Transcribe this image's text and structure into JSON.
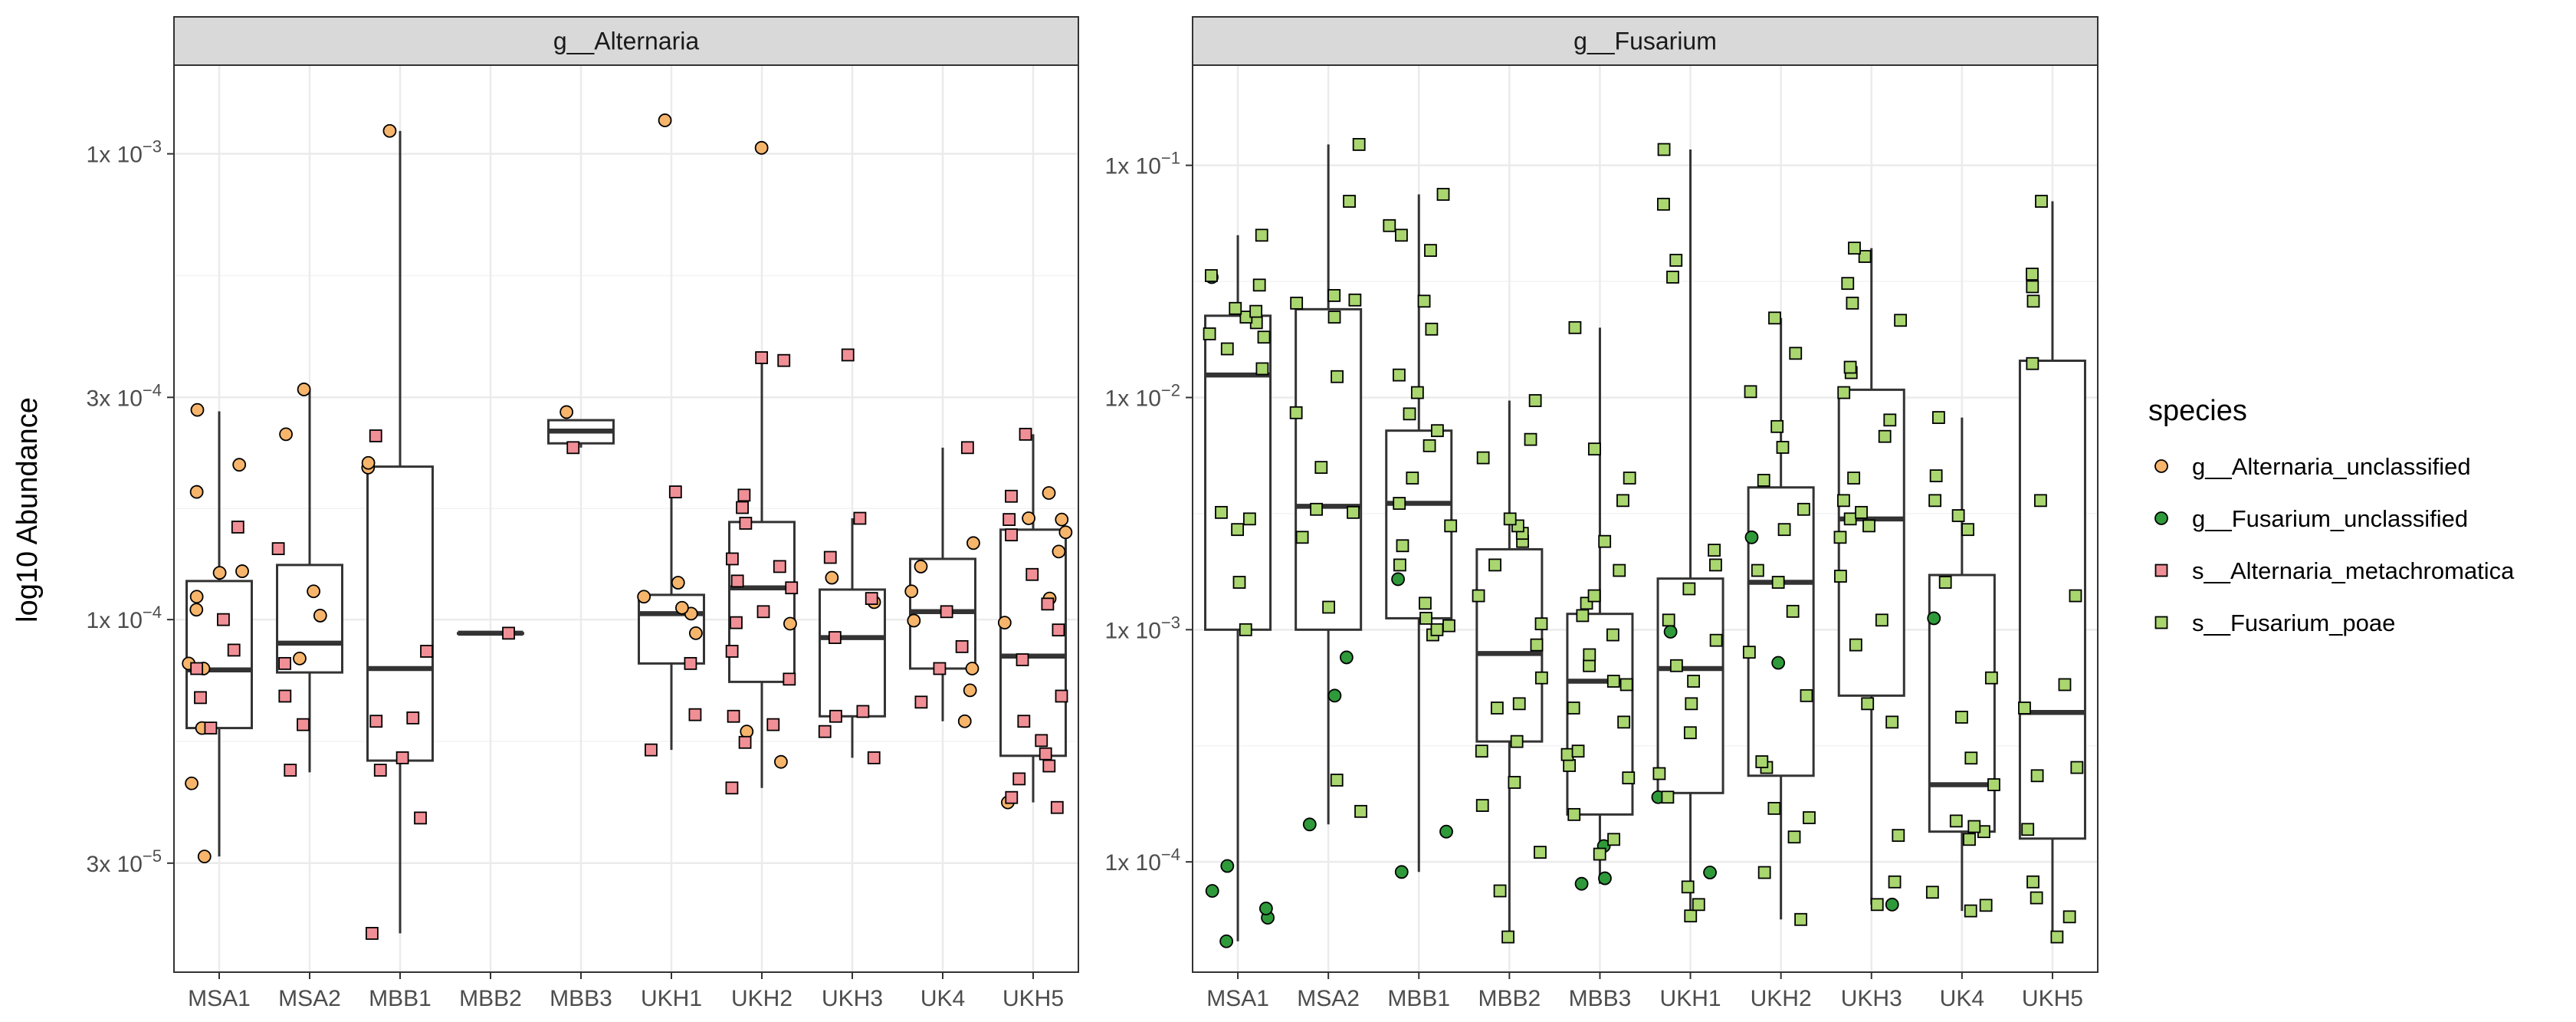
{
  "chart_data": [
    {
      "type": "box",
      "panel": "g__Alternaria",
      "ylabel": "log10 Abundance",
      "yscale": "log10",
      "ylim": [
        1.75e-05,
        0.00155
      ],
      "y_ticks": [
        {
          "value": 3e-05,
          "mantissa": "3",
          "exponent": "−5"
        },
        {
          "value": 0.0001,
          "mantissa": "1",
          "exponent": "−4"
        },
        {
          "value": 0.0003,
          "mantissa": "3",
          "exponent": "−4"
        },
        {
          "value": 0.001,
          "mantissa": "1",
          "exponent": "−3"
        }
      ],
      "categories": [
        "MSA1",
        "MSA2",
        "MBB1",
        "MBB2",
        "MBB3",
        "UKH1",
        "UKH2",
        "UKH3",
        "UK4",
        "UKH5"
      ],
      "boxes": [
        {
          "category": "MSA1",
          "min": 3.1e-05,
          "q1": 5.85e-05,
          "median": 7.8e-05,
          "q3": 0.000121,
          "max": 0.00028
        },
        {
          "category": "MSA2",
          "min": 4.7e-05,
          "q1": 7.7e-05,
          "median": 8.9e-05,
          "q3": 0.000131,
          "max": 0.00031
        },
        {
          "category": "MBB1",
          "min": 2.12e-05,
          "q1": 4.98e-05,
          "median": 7.85e-05,
          "q3": 0.000213,
          "max": 0.00112
        },
        {
          "category": "MBB2",
          "min": 9.35e-05,
          "q1": 9.35e-05,
          "median": 9.35e-05,
          "q3": 9.35e-05,
          "max": 9.35e-05
        },
        {
          "category": "MBB3",
          "min": 0.000234,
          "q1": 0.000239,
          "median": 0.000254,
          "q3": 0.000268,
          "max": 0.000268
        },
        {
          "category": "UKH1",
          "min": 5.25e-05,
          "q1": 8.05e-05,
          "median": 0.000103,
          "q3": 0.000113,
          "max": 0.000188
        },
        {
          "category": "UKH2",
          "min": 4.35e-05,
          "q1": 7.35e-05,
          "median": 0.000117,
          "q3": 0.000162,
          "max": 0.00036
        },
        {
          "category": "UKH3",
          "min": 5.05e-05,
          "q1": 6.2e-05,
          "median": 9.15e-05,
          "q3": 0.000116,
          "max": 0.000165
        },
        {
          "category": "UK4",
          "min": 6.05e-05,
          "q1": 7.85e-05,
          "median": 0.000104,
          "q3": 0.000135,
          "max": 0.000234
        },
        {
          "category": "UKH5",
          "min": 4.05e-05,
          "q1": 5.1e-05,
          "median": 8.35e-05,
          "q3": 0.000156,
          "max": 0.00025
        }
      ],
      "points": [
        {
          "category": "MSA1",
          "species": "g__Alternaria_unclassified",
          "values": [
            3.1e-05,
            4.45e-05,
            5.85e-05,
            7.85e-05,
            8.05e-05,
            0.000105,
            0.000112,
            0.000126,
            0.000127,
            0.000188,
            0.000215,
            0.000282
          ]
        },
        {
          "category": "MSA1",
          "species": "s__Alternaria_metachromatica",
          "values": [
            5.85e-05,
            6.8e-05,
            7.85e-05,
            8.6e-05,
            0.0001,
            0.000158
          ]
        },
        {
          "category": "MSA2",
          "species": "g__Alternaria_unclassified",
          "values": [
            8.25e-05,
            0.000102,
            0.000115,
            0.00025,
            0.000312
          ]
        },
        {
          "category": "MSA2",
          "species": "s__Alternaria_metachromatica",
          "values": [
            4.75e-05,
            5.95e-05,
            6.85e-05,
            8.05e-05,
            0.000142
          ]
        },
        {
          "category": "MBB1",
          "species": "g__Alternaria_unclassified",
          "values": [
            0.000212,
            0.000217,
            0.00112
          ]
        },
        {
          "category": "MBB1",
          "species": "s__Alternaria_metachromatica",
          "values": [
            2.12e-05,
            3.75e-05,
            4.75e-05,
            5.05e-05,
            6.05e-05,
            6.15e-05,
            8.55e-05,
            0.000248
          ]
        },
        {
          "category": "MBB2",
          "species": "s__Alternaria_metachromatica",
          "values": [
            9.35e-05
          ]
        },
        {
          "category": "MBB3",
          "species": "g__Alternaria_unclassified",
          "values": [
            0.000279
          ]
        },
        {
          "category": "MBB3",
          "species": "s__Alternaria_metachromatica",
          "values": [
            0.000234
          ]
        },
        {
          "category": "UKH1",
          "species": "g__Alternaria_unclassified",
          "values": [
            9.35e-05,
            0.000103,
            0.000106,
            0.000112,
            0.00012,
            0.00118
          ]
        },
        {
          "category": "UKH1",
          "species": "s__Alternaria_metachromatica",
          "values": [
            5.25e-05,
            6.25e-05,
            8.05e-05,
            0.000188
          ]
        },
        {
          "category": "UKH2",
          "species": "g__Alternaria_unclassified",
          "values": [
            4.95e-05,
            5.75e-05,
            9.8e-05,
            0.00103
          ]
        },
        {
          "category": "UKH2",
          "species": "s__Alternaria_metachromatica",
          "values": [
            4.35e-05,
            5.45e-05,
            5.95e-05,
            6.2e-05,
            7.45e-05,
            8.55e-05,
            9.85e-05,
            0.000104,
            0.000117,
            0.000121,
            0.00013,
            0.000135,
            0.000161,
            0.000174,
            0.000185,
            0.00036,
            0.000365
          ]
        },
        {
          "category": "UKH3",
          "species": "g__Alternaria_unclassified",
          "values": [
            0.000109,
            0.000123
          ]
        },
        {
          "category": "UKH3",
          "species": "s__Alternaria_metachromatica",
          "values": [
            5.05e-05,
            5.75e-05,
            6.2e-05,
            6.35e-05,
            9.15e-05,
            0.000111,
            0.000136,
            0.000165,
            0.00037
          ]
        },
        {
          "category": "UK4",
          "species": "g__Alternaria_unclassified",
          "values": [
            6.05e-05,
            7.05e-05,
            7.85e-05,
            9.95e-05,
            0.000115,
            0.00013,
            0.000146
          ]
        },
        {
          "category": "UK4",
          "species": "s__Alternaria_metachromatica",
          "values": [
            6.65e-05,
            7.85e-05,
            8.75e-05,
            0.000104,
            0.000234
          ]
        },
        {
          "category": "UKH5",
          "species": "g__Alternaria_unclassified",
          "values": [
            4.05e-05,
            9.85e-05,
            0.000111,
            0.00014,
            0.000154,
            0.000164,
            0.000165,
            0.000187
          ]
        },
        {
          "category": "UKH5",
          "species": "s__Alternaria_metachromatica",
          "values": [
            3.95e-05,
            4.15e-05,
            4.55e-05,
            4.85e-05,
            5.15e-05,
            5.5e-05,
            6.05e-05,
            6.85e-05,
            8.2e-05,
            9.5e-05,
            0.000108,
            0.000125,
            0.000152,
            0.000164,
            0.000184,
            0.00025
          ]
        }
      ]
    },
    {
      "type": "box",
      "panel": "g__Fusarium",
      "ylabel": "",
      "yscale": "log10",
      "ylim": [
        3.35e-05,
        0.27
      ],
      "y_ticks": [
        {
          "value": 0.0001,
          "mantissa": "1",
          "exponent": "−4"
        },
        {
          "value": 0.001,
          "mantissa": "1",
          "exponent": "−3"
        },
        {
          "value": 0.01,
          "mantissa": "1",
          "exponent": "−2"
        },
        {
          "value": 0.1,
          "mantissa": "1",
          "exponent": "−1"
        }
      ],
      "categories": [
        "MSA1",
        "MSA2",
        "MBB1",
        "MBB2",
        "MBB3",
        "UKH1",
        "UKH2",
        "UKH3",
        "UK4",
        "UKH5"
      ],
      "boxes": [
        {
          "category": "MSA1",
          "min": 4.55e-05,
          "q1": 0.001,
          "median": 0.0125,
          "q3": 0.0225,
          "max": 0.05
        },
        {
          "category": "MSA2",
          "min": 0.000145,
          "q1": 0.001,
          "median": 0.0034,
          "q3": 0.024,
          "max": 0.123
        },
        {
          "category": "MBB1",
          "min": 9.05e-05,
          "q1": 0.00112,
          "median": 0.0035,
          "q3": 0.0072,
          "max": 0.075
        },
        {
          "category": "MBB2",
          "min": 4.75e-05,
          "q1": 0.00033,
          "median": 0.00079,
          "q3": 0.00222,
          "max": 0.0097
        },
        {
          "category": "MBB3",
          "min": 8.05e-05,
          "q1": 0.00016,
          "median": 0.0006,
          "q3": 0.00117,
          "max": 0.02
        },
        {
          "category": "UKH1",
          "min": 5.85e-05,
          "q1": 0.000198,
          "median": 0.00068,
          "q3": 0.00166,
          "max": 0.117
        },
        {
          "category": "UKH2",
          "min": 5.65e-05,
          "q1": 0.000235,
          "median": 0.0016,
          "q3": 0.0041,
          "max": 0.022
        },
        {
          "category": "UKH3",
          "min": 6.55e-05,
          "q1": 0.00052,
          "median": 0.003,
          "q3": 0.0108,
          "max": 0.044
        },
        {
          "category": "UK4",
          "min": 6.15e-05,
          "q1": 0.000135,
          "median": 0.000215,
          "q3": 0.00172,
          "max": 0.0082
        },
        {
          "category": "UKH5",
          "min": 4.75e-05,
          "q1": 0.000126,
          "median": 0.00044,
          "q3": 0.0144,
          "max": 0.07
        }
      ],
      "points": [
        {
          "category": "MSA1",
          "species": "g__Fusarium_unclassified",
          "values": [
            4.55e-05,
            5.75e-05,
            6.3e-05,
            7.5e-05,
            9.6e-05,
            0.033
          ]
        },
        {
          "category": "MSA1",
          "species": "s__Fusarium_poae",
          "values": [
            0.001,
            0.0016,
            0.0027,
            0.003,
            0.0032,
            0.0133,
            0.0162,
            0.0182,
            0.0188,
            0.021,
            0.0222,
            0.0235,
            0.0242,
            0.0305,
            0.0335,
            0.05
          ]
        },
        {
          "category": "MSA2",
          "species": "g__Fusarium_unclassified",
          "values": [
            0.000145,
            0.00052,
            0.00076
          ]
        },
        {
          "category": "MSA2",
          "species": "s__Fusarium_poae",
          "values": [
            0.000165,
            0.000225,
            0.00125,
            0.0025,
            0.0032,
            0.0033,
            0.005,
            0.0086,
            0.0123,
            0.0222,
            0.0255,
            0.0263,
            0.0275,
            0.07,
            0.123
          ]
        },
        {
          "category": "MBB1",
          "species": "g__Fusarium_unclassified",
          "values": [
            9.05e-05,
            0.000135,
            0.00165
          ]
        },
        {
          "category": "MBB1",
          "species": "s__Fusarium_poae",
          "values": [
            0.00095,
            0.001,
            0.00104,
            0.00112,
            0.0013,
            0.0019,
            0.0023,
            0.0028,
            0.0035,
            0.0045,
            0.0062,
            0.0072,
            0.0085,
            0.0105,
            0.0125,
            0.0197,
            0.026,
            0.043,
            0.05,
            0.055,
            0.075
          ]
        },
        {
          "category": "MBB2",
          "species": "g__Fusarium_unclassified",
          "values": []
        },
        {
          "category": "MBB2",
          "species": "s__Fusarium_poae",
          "values": [
            4.75e-05,
            7.5e-05,
            0.00011,
            0.000175,
            0.00022,
            0.0003,
            0.00033,
            0.00046,
            0.00048,
            0.00062,
            0.00086,
            0.00106,
            0.0014,
            0.0019,
            0.0024,
            0.0026,
            0.0028,
            0.003,
            0.0055,
            0.0066,
            0.0097
          ]
        },
        {
          "category": "MBB3",
          "species": "g__Fusarium_unclassified",
          "values": [
            8.05e-05,
            8.5e-05,
            0.000117
          ]
        },
        {
          "category": "MBB3",
          "species": "s__Fusarium_poae",
          "values": [
            0.000108,
            0.000125,
            0.00016,
            0.00023,
            0.00026,
            0.00029,
            0.0003,
            0.0004,
            0.00046,
            0.00058,
            0.0006,
            0.0007,
            0.00078,
            0.00095,
            0.00115,
            0.0013,
            0.0014,
            0.0018,
            0.0024,
            0.0036,
            0.0045,
            0.006,
            0.02
          ]
        },
        {
          "category": "UKH1",
          "species": "g__Fusarium_unclassified",
          "values": [
            9e-05,
            0.00019,
            0.00098
          ]
        },
        {
          "category": "UKH1",
          "species": "s__Fusarium_poae",
          "values": [
            5.85e-05,
            6.55e-05,
            7.8e-05,
            0.00019,
            0.00024,
            0.00036,
            0.00048,
            0.0006,
            0.0007,
            0.0009,
            0.0011,
            0.0015,
            0.0019,
            0.0022,
            0.033,
            0.039,
            0.068,
            0.117
          ]
        },
        {
          "category": "UKH2",
          "species": "g__Fusarium_unclassified",
          "values": [
            0.00072,
            0.0025
          ]
        },
        {
          "category": "UKH2",
          "species": "s__Fusarium_poae",
          "values": [
            5.65e-05,
            9e-05,
            0.000128,
            0.000155,
            0.00017,
            0.000255,
            0.00027,
            0.00052,
            0.0008,
            0.0012,
            0.0016,
            0.0018,
            0.0027,
            0.0033,
            0.0044,
            0.0061,
            0.0075,
            0.0106,
            0.0155,
            0.022
          ]
        },
        {
          "category": "UKH3",
          "species": "g__Fusarium_unclassified",
          "values": [
            6.55e-05
          ]
        },
        {
          "category": "UKH3",
          "species": "s__Fusarium_poae",
          "values": [
            6.55e-05,
            8.2e-05,
            0.00013,
            0.0004,
            0.00048,
            0.00086,
            0.0011,
            0.0017,
            0.0025,
            0.0028,
            0.003,
            0.0032,
            0.0036,
            0.0045,
            0.0068,
            0.008,
            0.0105,
            0.0128,
            0.0135,
            0.0215,
            0.0255,
            0.031,
            0.0405,
            0.044
          ]
        },
        {
          "category": "UK4",
          "species": "g__Fusarium_unclassified",
          "values": [
            0.00112
          ]
        },
        {
          "category": "UK4",
          "species": "s__Fusarium_poae",
          "values": [
            6.15e-05,
            6.5e-05,
            7.4e-05,
            0.000125,
            0.000135,
            0.000142,
            0.00015,
            0.000215,
            0.00028,
            0.00042,
            0.00062,
            0.0016,
            0.0027,
            0.0031,
            0.0036,
            0.0046,
            0.0082
          ]
        },
        {
          "category": "UKH5",
          "species": "g__Fusarium_unclassified",
          "values": []
        },
        {
          "category": "UKH5",
          "species": "s__Fusarium_poae",
          "values": [
            4.75e-05,
            5.8e-05,
            7e-05,
            8.2e-05,
            0.000138,
            0.000235,
            0.000255,
            0.00046,
            0.00058,
            0.0014,
            0.0036,
            0.014,
            0.026,
            0.03,
            0.034,
            0.07
          ]
        }
      ]
    }
  ],
  "legend": {
    "title": "species",
    "items": [
      {
        "label": "g__Alternaria_unclassified",
        "color": "#f6b56b",
        "shape": "circle"
      },
      {
        "label": "g__Fusarium_unclassified",
        "color": "#2e9a3a",
        "shape": "circle"
      },
      {
        "label": "s__Alternaria_metachromatica",
        "color": "#f18f96",
        "shape": "square"
      },
      {
        "label": "s__Fusarium_poae",
        "color": "#a9d66f",
        "shape": "square"
      }
    ]
  },
  "colors": {
    "g__Alternaria_unclassified": "#f6b56b",
    "g__Fusarium_unclassified": "#2e9a3a",
    "s__Alternaria_metachromatica": "#f18f96",
    "s__Fusarium_poae": "#a9d66f",
    "strip_fill": "#d9d9d9",
    "grid_major": "#ebebeb",
    "box_line": "#333333"
  }
}
